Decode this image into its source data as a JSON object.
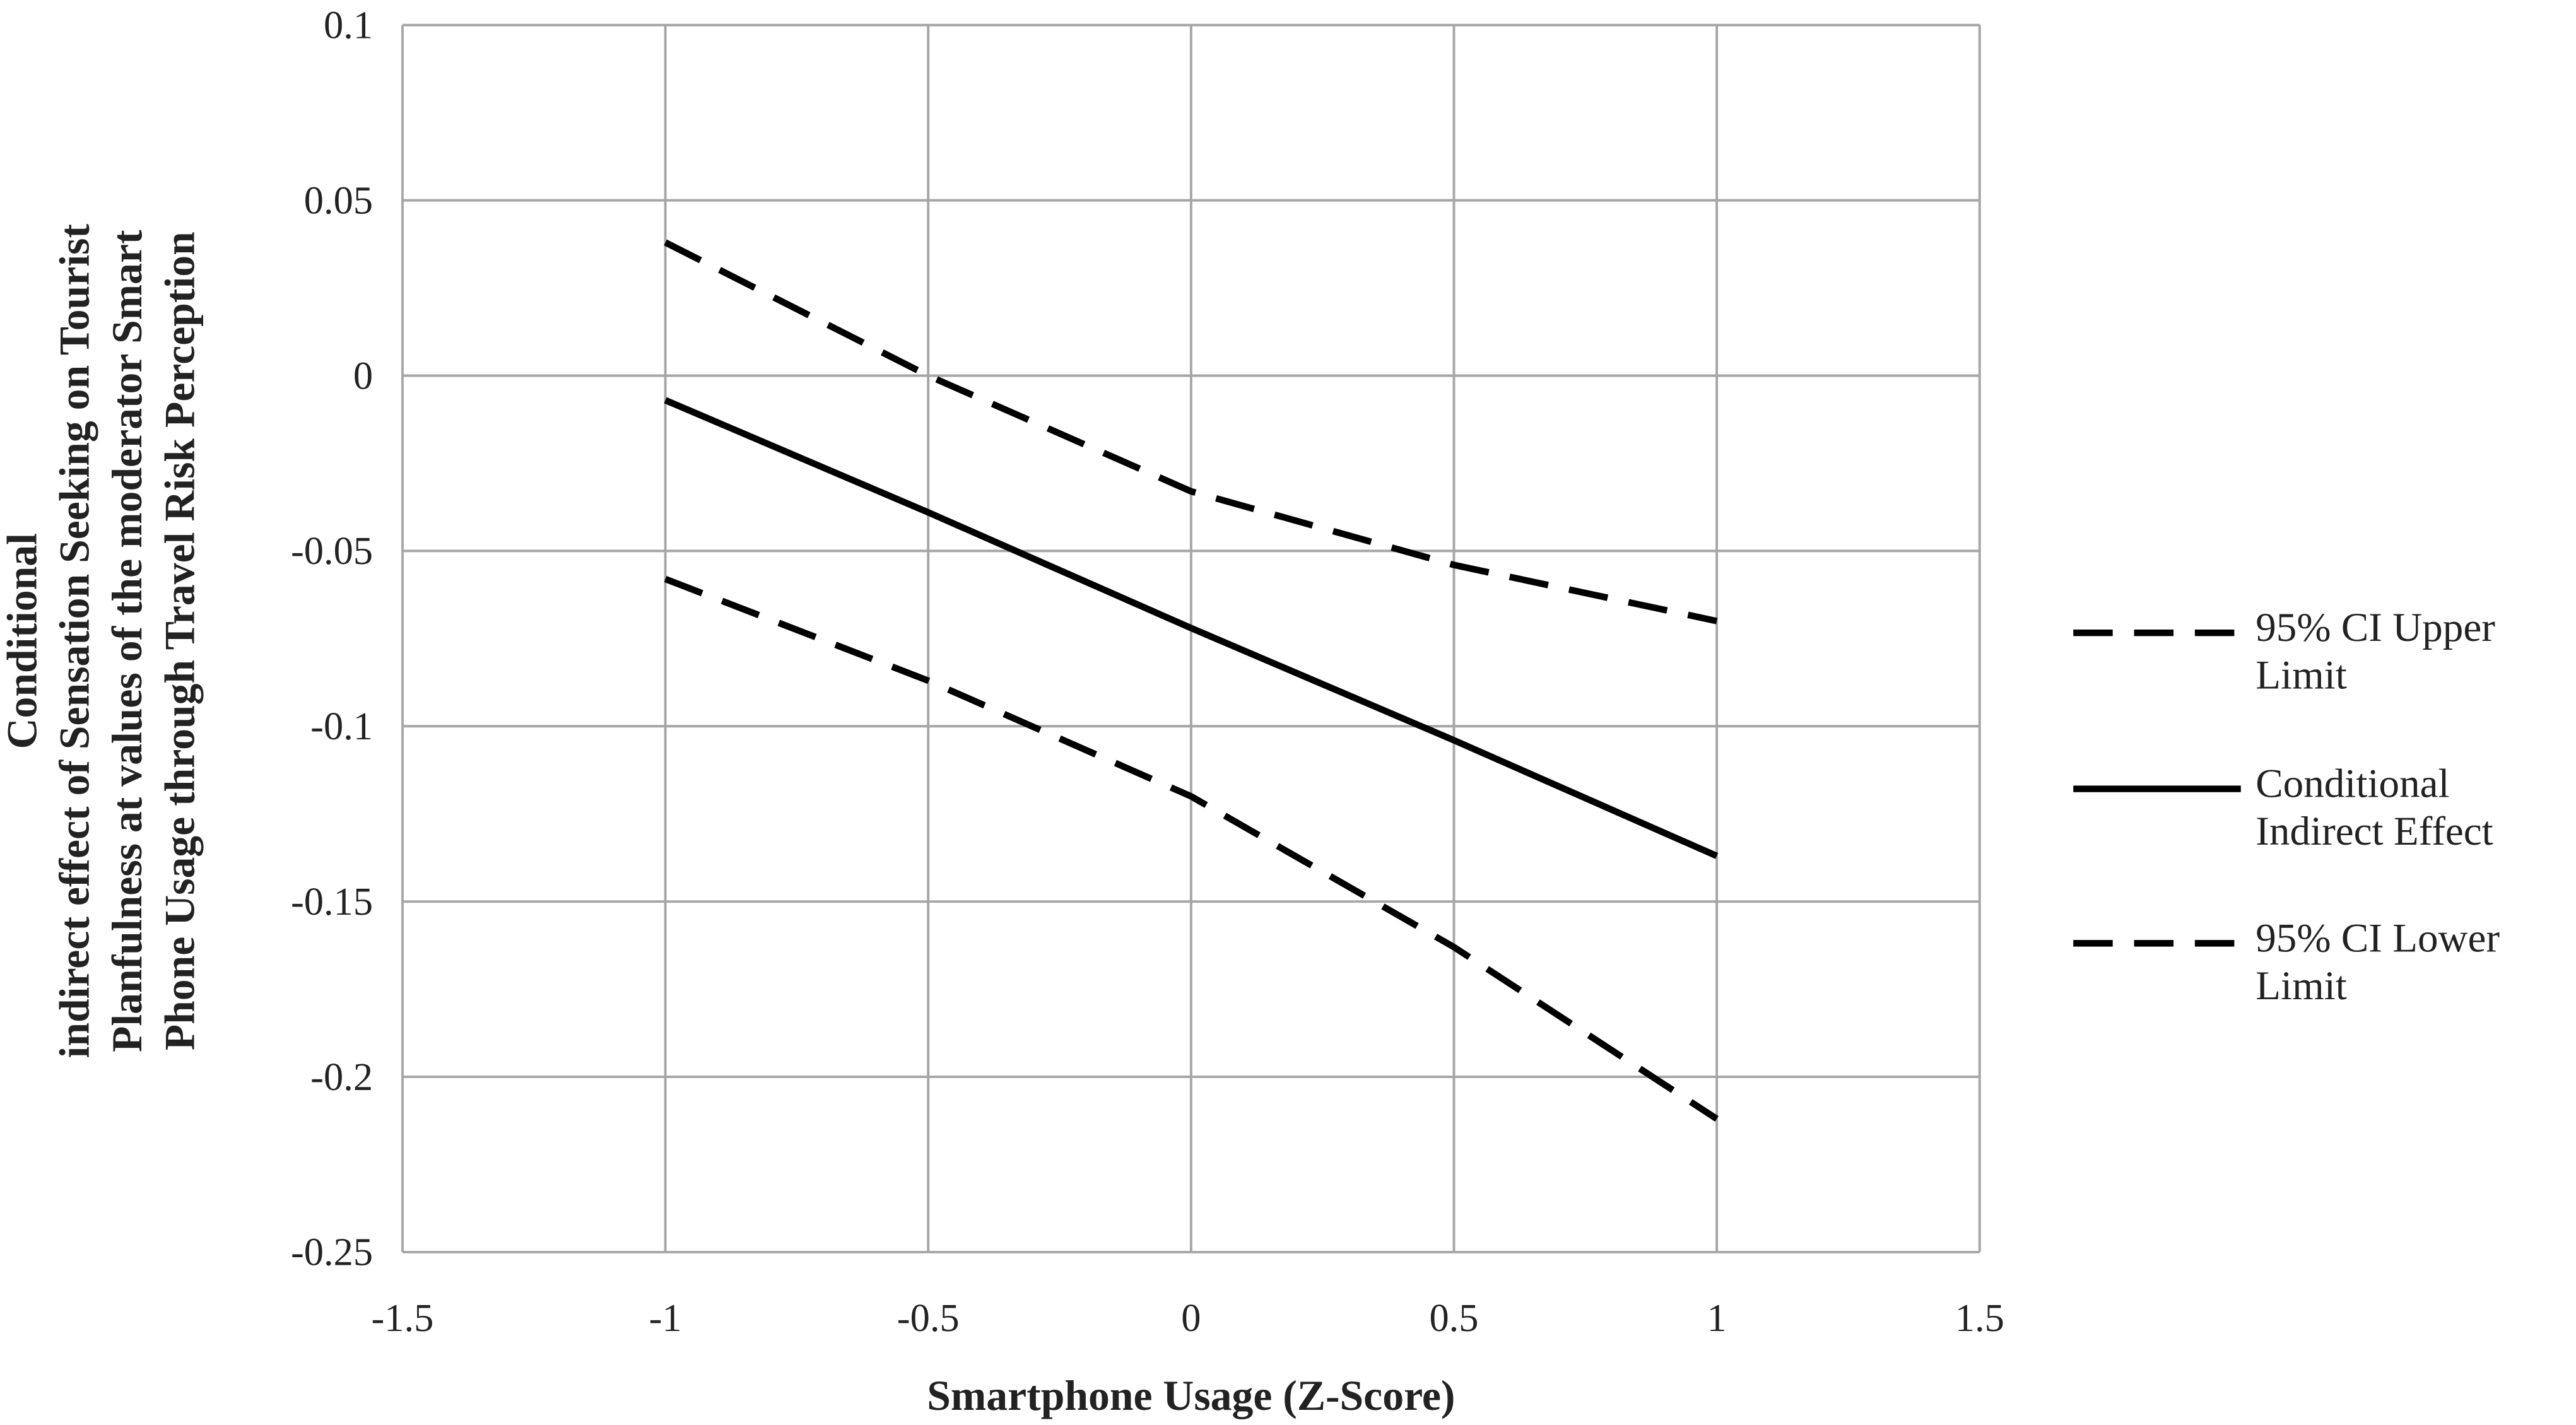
{
  "chart_data": {
    "type": "line",
    "y_label": [
      "Conditional",
      "indirect effect of Sensation Seeking on Tourist",
      "Planfulness at values of the moderator Smart",
      "Phone Usage through Travel Risk Perception"
    ],
    "x_label": "Smartphone Usage (Z-Score)",
    "x": [
      -1,
      -0.5,
      0,
      0.5,
      1
    ],
    "series": [
      {
        "name": "95% CI Upper Limit",
        "color": "#000000",
        "line_style": "dashed",
        "values": [
          0.038,
          0.0,
          -0.033,
          -0.054,
          -0.07
        ]
      },
      {
        "name": "Conditional Indirect Effect",
        "color": "#000000",
        "line_style": "solid",
        "values": [
          -0.007,
          -0.039,
          -0.072,
          -0.104,
          -0.137
        ]
      },
      {
        "name": "95% CI Lower Limit",
        "color": "#000000",
        "line_style": "dashed",
        "values": [
          -0.058,
          -0.087,
          -0.12,
          -0.163,
          -0.212
        ]
      }
    ],
    "xlim": [
      -1.5,
      1.5
    ],
    "xticks": [
      -1.5,
      -1,
      -0.5,
      0,
      0.5,
      1,
      1.5
    ],
    "ylim": [
      -0.25,
      0.1
    ],
    "yticks": [
      0.1,
      0.05,
      0,
      -0.05,
      -0.1,
      -0.15,
      -0.2,
      -0.25
    ],
    "grid": true,
    "legend": "right"
  }
}
